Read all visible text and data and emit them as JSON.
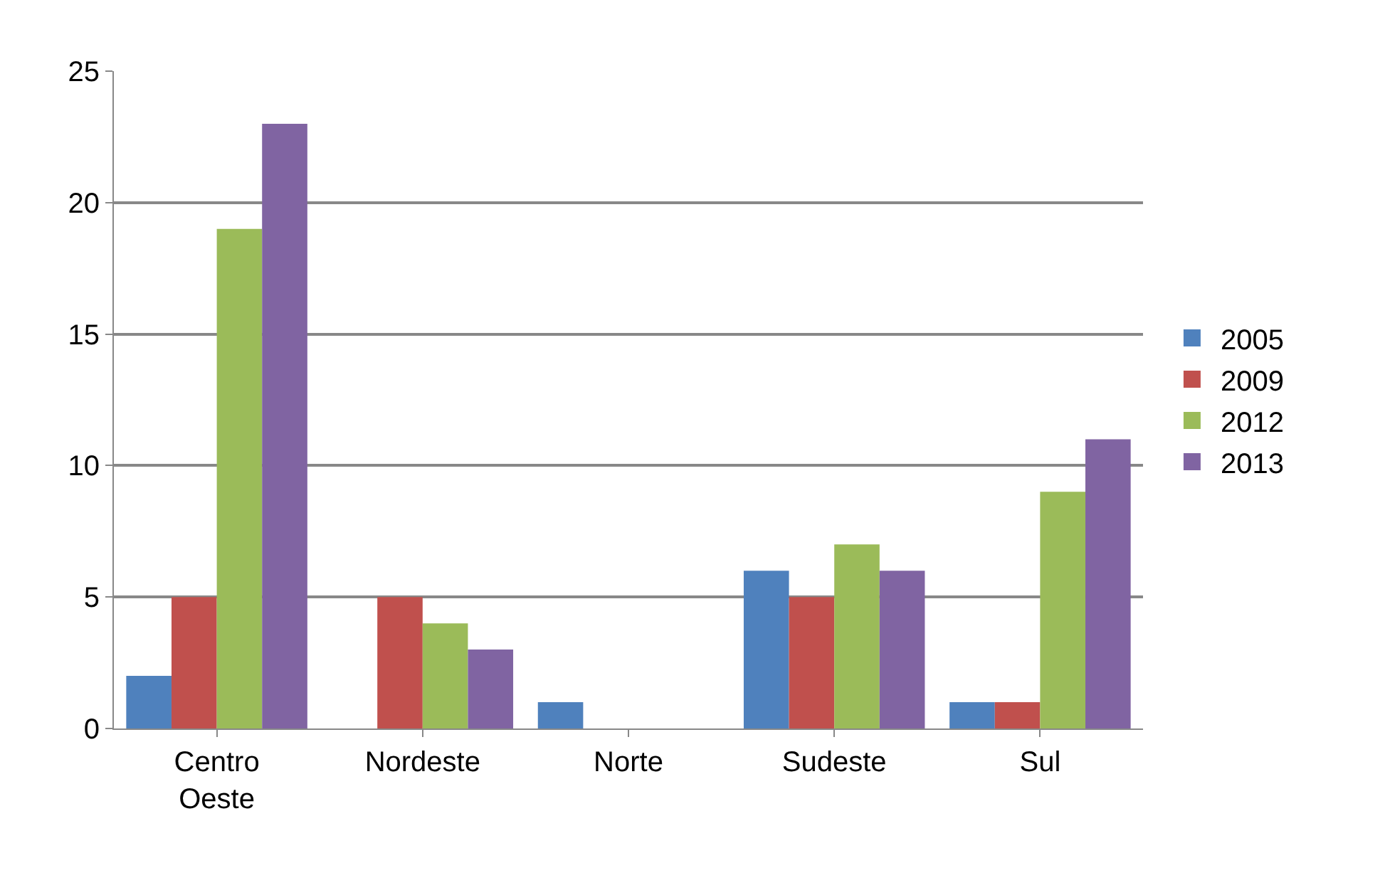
{
  "chart_data": {
    "type": "bar",
    "categories": [
      "Centro Oeste",
      "Nordeste",
      "Norte",
      "Sudeste",
      "Sul"
    ],
    "series": [
      {
        "name": "2005",
        "color": "#4f81bd",
        "values": [
          2,
          0,
          1,
          6,
          1
        ]
      },
      {
        "name": "2009",
        "color": "#c0504d",
        "values": [
          5,
          5,
          0,
          5,
          1
        ]
      },
      {
        "name": "2012",
        "color": "#9bbb59",
        "values": [
          19,
          4,
          0,
          7,
          9
        ]
      },
      {
        "name": "2013",
        "color": "#8064a2",
        "values": [
          23,
          3,
          0,
          6,
          11
        ]
      }
    ],
    "ylim": [
      0,
      25
    ],
    "yticks": [
      0,
      5,
      10,
      15,
      20,
      25
    ],
    "grid": "y",
    "legend": "right"
  }
}
